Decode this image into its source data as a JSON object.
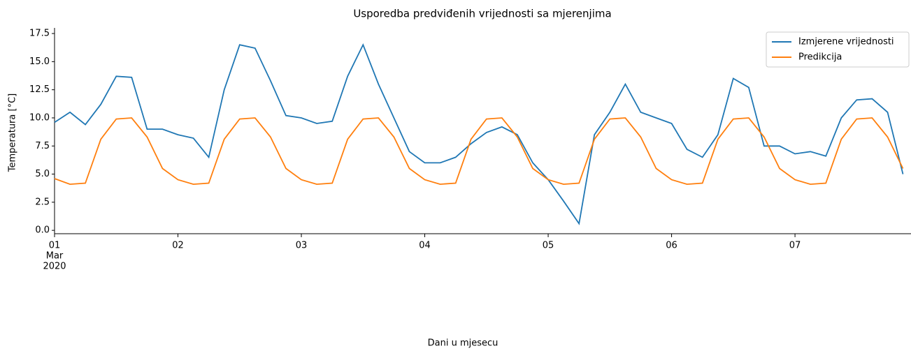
{
  "chart_data": {
    "type": "line",
    "title": "Usporedba predviđenih vrijednosti sa mjerenjima",
    "xlabel": "Dani u mjesecu",
    "ylabel": "Temperatura [°C]",
    "x": [
      1,
      1.125,
      1.25,
      1.375,
      1.5,
      1.625,
      1.75,
      1.875,
      2,
      2.125,
      2.25,
      2.375,
      2.5,
      2.625,
      2.75,
      2.875,
      3,
      3.125,
      3.25,
      3.375,
      3.5,
      3.625,
      3.75,
      3.875,
      4,
      4.125,
      4.25,
      4.375,
      4.5,
      4.625,
      4.75,
      4.875,
      5,
      5.125,
      5.25,
      5.375,
      5.5,
      5.625,
      5.75,
      5.875,
      6,
      6.125,
      6.25,
      6.375,
      6.5,
      6.625,
      6.75,
      6.875,
      7,
      7.125,
      7.25,
      7.375,
      7.5,
      7.625,
      7.75,
      7.875
    ],
    "series": [
      {
        "name": "Izmjerene vrijednosti",
        "color": "#1f77b4",
        "values": [
          9.6,
          10.5,
          9.4,
          11.2,
          13.7,
          13.6,
          9.0,
          9.0,
          8.5,
          8.2,
          6.5,
          12.5,
          16.5,
          16.2,
          13.3,
          10.2,
          10.0,
          9.5,
          9.7,
          13.7,
          16.5,
          13.0,
          10.0,
          7.0,
          6.0,
          6.0,
          6.5,
          7.7,
          8.7,
          9.2,
          8.5,
          6.0,
          4.5,
          2.6,
          0.6,
          8.5,
          10.5,
          13.0,
          10.5,
          10.0,
          9.5,
          7.2,
          6.5,
          8.5,
          13.5,
          12.7,
          7.5,
          7.5,
          6.8,
          7.0,
          6.6,
          10.0,
          11.6,
          11.7,
          10.5,
          5.0
        ]
      },
      {
        "name": "Predikcija",
        "color": "#ff7f0e",
        "values": [
          4.6,
          4.1,
          4.2,
          8.1,
          9.9,
          10.0,
          8.3,
          5.5,
          4.5,
          4.1,
          4.2,
          8.1,
          9.9,
          10.0,
          8.3,
          5.5,
          4.5,
          4.1,
          4.2,
          8.1,
          9.9,
          10.0,
          8.3,
          5.5,
          4.5,
          4.1,
          4.2,
          8.1,
          9.9,
          10.0,
          8.3,
          5.5,
          4.5,
          4.1,
          4.2,
          8.1,
          9.9,
          10.0,
          8.3,
          5.5,
          4.5,
          4.1,
          4.2,
          8.1,
          9.9,
          10.0,
          8.3,
          5.5,
          4.5,
          4.1,
          4.2,
          8.1,
          9.9,
          10.0,
          8.3,
          5.5
        ]
      }
    ],
    "xlim": [
      1,
      7.94
    ],
    "ylim": [
      -0.3,
      18.0
    ],
    "xticks": [
      {
        "value": 1,
        "label": "01"
      },
      {
        "value": 2,
        "label": "02"
      },
      {
        "value": 3,
        "label": "03"
      },
      {
        "value": 4,
        "label": "04"
      },
      {
        "value": 5,
        "label": "05"
      },
      {
        "value": 6,
        "label": "06"
      },
      {
        "value": 7,
        "label": "07"
      }
    ],
    "xtick_offset": [
      "Mar",
      "2020"
    ],
    "yticks": [
      {
        "value": 0,
        "label": "0.0"
      },
      {
        "value": 2.5,
        "label": "2.5"
      },
      {
        "value": 5,
        "label": "5.0"
      },
      {
        "value": 7.5,
        "label": "7.5"
      },
      {
        "value": 10,
        "label": "10.0"
      },
      {
        "value": 12.5,
        "label": "12.5"
      },
      {
        "value": 15,
        "label": "15.0"
      },
      {
        "value": 17.5,
        "label": "17.5"
      }
    ],
    "legend": "upper right",
    "grid": false
  }
}
